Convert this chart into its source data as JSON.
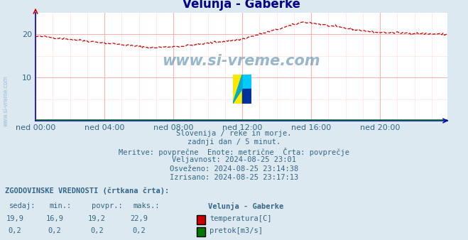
{
  "title": "Velunja - Gaberke",
  "title_color": "#00008B",
  "bg_color": "#dce9f0",
  "plot_bg_color": "#ffffff",
  "grid_color_major": "#ffb0b0",
  "grid_color_minor": "#ffe0e0",
  "xlim": [
    0,
    287
  ],
  "ylim": [
    0,
    25
  ],
  "yticks": [
    10,
    20
  ],
  "xtick_labels": [
    "ned 00:00",
    "ned 04:00",
    "ned 08:00",
    "ned 12:00",
    "ned 16:00",
    "ned 20:00"
  ],
  "xtick_positions": [
    0,
    48,
    96,
    144,
    192,
    240
  ],
  "temp_color": "#cc0000",
  "flow_color": "#007700",
  "axis_color": "#0000cc",
  "watermark_color": "#5588aa",
  "text_color": "#336688",
  "info_lines": [
    "Slovenija / reke in morje.",
    "zadnji dan / 5 minut.",
    "Meritve: povprečne  Enote: metrične  Črta: povprečje",
    "Veljavnost: 2024-08-25 23:01",
    "Osveženo: 2024-08-25 23:14:38",
    "Izrisano: 2024-08-25 23:17:13"
  ],
  "table_header": "ZGODOVINSKE VREDNOSTI (črtkana črta):",
  "table_cols": [
    "sedaj:",
    "min.:",
    "povpr.:",
    "maks.:"
  ],
  "table_row1": [
    "19,9",
    "16,9",
    "19,2",
    "22,9"
  ],
  "table_row2": [
    "0,2",
    "0,2",
    "0,2",
    "0,2"
  ],
  "legend_label1": "temperatura[C]",
  "legend_label2": "pretok[m3/s]",
  "legend_title": "Velunja - Gaberke"
}
